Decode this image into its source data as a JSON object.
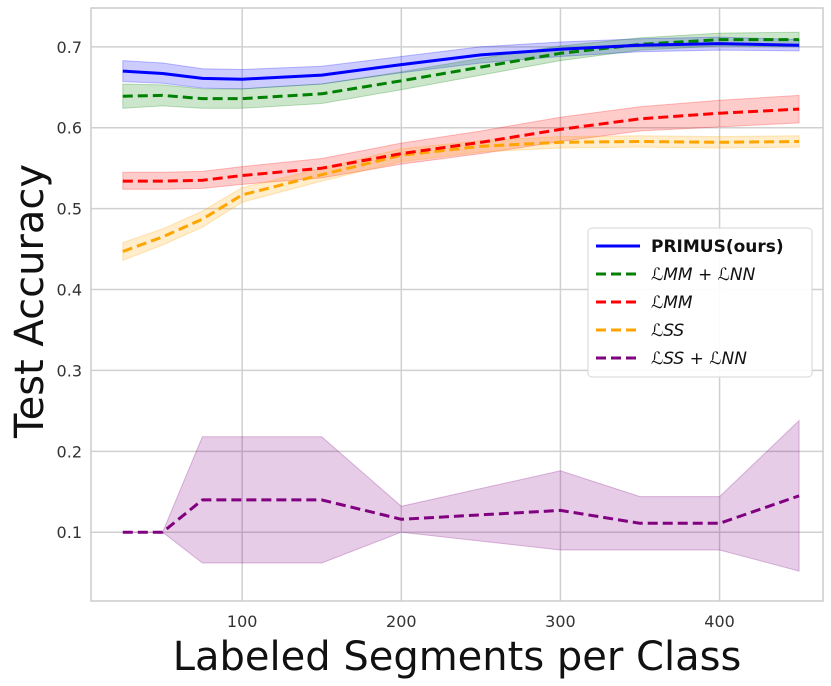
{
  "chart_data": {
    "type": "line",
    "title": "",
    "xlabel": "Labeled Segments per Class",
    "ylabel": "Test Accuracy",
    "xlim": [
      5,
      465
    ],
    "ylim": [
      0.015,
      0.748
    ],
    "xticks": [
      100,
      200,
      300,
      400
    ],
    "yticks": [
      0.1,
      0.2,
      0.3,
      0.4,
      0.5,
      0.6,
      0.7
    ],
    "xtick_labels": [
      "100",
      "200",
      "300",
      "400"
    ],
    "ytick_labels": [
      "0.1",
      "0.2",
      "0.3",
      "0.4",
      "0.5",
      "0.6",
      "0.7"
    ],
    "grid": true,
    "legend_position": "center-right",
    "series": [
      {
        "name": "PRIMUS(ours)",
        "legend_label": "PRIMUS(ours)",
        "color": "#0000ff",
        "dash": "solid",
        "bold": true,
        "x": [
          25,
          50,
          75,
          100,
          150,
          200,
          250,
          300,
          350,
          400,
          450
        ],
        "values": [
          0.67,
          0.667,
          0.661,
          0.66,
          0.665,
          0.678,
          0.69,
          0.697,
          0.702,
          0.704,
          0.702
        ],
        "lower": [
          0.657,
          0.655,
          0.649,
          0.648,
          0.654,
          0.668,
          0.68,
          0.688,
          0.694,
          0.696,
          0.695
        ],
        "upper": [
          0.683,
          0.68,
          0.673,
          0.672,
          0.676,
          0.688,
          0.7,
          0.706,
          0.71,
          0.712,
          0.709
        ]
      },
      {
        "name": "L_MM + L_NN",
        "legend_label": "ℒMM + ℒNN",
        "color": "#008000",
        "dash": "dashed",
        "bold": false,
        "x": [
          25,
          50,
          75,
          100,
          150,
          200,
          250,
          300,
          350,
          400,
          450
        ],
        "values": [
          0.639,
          0.64,
          0.636,
          0.636,
          0.642,
          0.658,
          0.675,
          0.692,
          0.703,
          0.709,
          0.709
        ],
        "lower": [
          0.624,
          0.627,
          0.624,
          0.624,
          0.63,
          0.647,
          0.665,
          0.683,
          0.696,
          0.701,
          0.7
        ],
        "upper": [
          0.654,
          0.653,
          0.648,
          0.648,
          0.654,
          0.669,
          0.686,
          0.701,
          0.711,
          0.717,
          0.718
        ]
      },
      {
        "name": "L_MM",
        "legend_label": "ℒMM",
        "color": "#ff0000",
        "dash": "dashed",
        "bold": false,
        "x": [
          25,
          50,
          75,
          100,
          150,
          200,
          250,
          300,
          350,
          400,
          450
        ],
        "values": [
          0.534,
          0.534,
          0.535,
          0.541,
          0.55,
          0.568,
          0.582,
          0.598,
          0.611,
          0.618,
          0.623
        ],
        "lower": [
          0.524,
          0.524,
          0.525,
          0.53,
          0.538,
          0.555,
          0.568,
          0.583,
          0.596,
          0.601,
          0.606
        ],
        "upper": [
          0.545,
          0.545,
          0.546,
          0.552,
          0.562,
          0.581,
          0.596,
          0.613,
          0.626,
          0.634,
          0.64
        ]
      },
      {
        "name": "L_SS",
        "legend_label": "ℒSS",
        "color": "#ffa500",
        "dash": "dashed",
        "bold": false,
        "x": [
          25,
          50,
          75,
          100,
          150,
          200,
          250,
          300,
          350,
          400,
          450
        ],
        "values": [
          0.447,
          0.465,
          0.487,
          0.517,
          0.542,
          0.566,
          0.577,
          0.582,
          0.583,
          0.582,
          0.583
        ],
        "lower": [
          0.436,
          0.455,
          0.477,
          0.508,
          0.534,
          0.558,
          0.57,
          0.575,
          0.576,
          0.575,
          0.576
        ],
        "upper": [
          0.458,
          0.475,
          0.497,
          0.526,
          0.55,
          0.574,
          0.584,
          0.589,
          0.59,
          0.589,
          0.59
        ]
      },
      {
        "name": "L_SS + L_NN",
        "legend_label": "ℒSS + ℒNN",
        "color": "#800080",
        "dash": "dashed",
        "bold": false,
        "x": [
          25,
          50,
          75,
          100,
          150,
          200,
          300,
          350,
          400,
          450
        ],
        "values": [
          0.1,
          0.1,
          0.14,
          0.14,
          0.14,
          0.116,
          0.127,
          0.111,
          0.111,
          0.145
        ],
        "lower": [
          0.1,
          0.1,
          0.062,
          0.062,
          0.062,
          0.1,
          0.078,
          0.078,
          0.078,
          0.052
        ],
        "upper": [
          0.1,
          0.1,
          0.218,
          0.218,
          0.218,
          0.132,
          0.176,
          0.144,
          0.144,
          0.238
        ]
      }
    ]
  }
}
